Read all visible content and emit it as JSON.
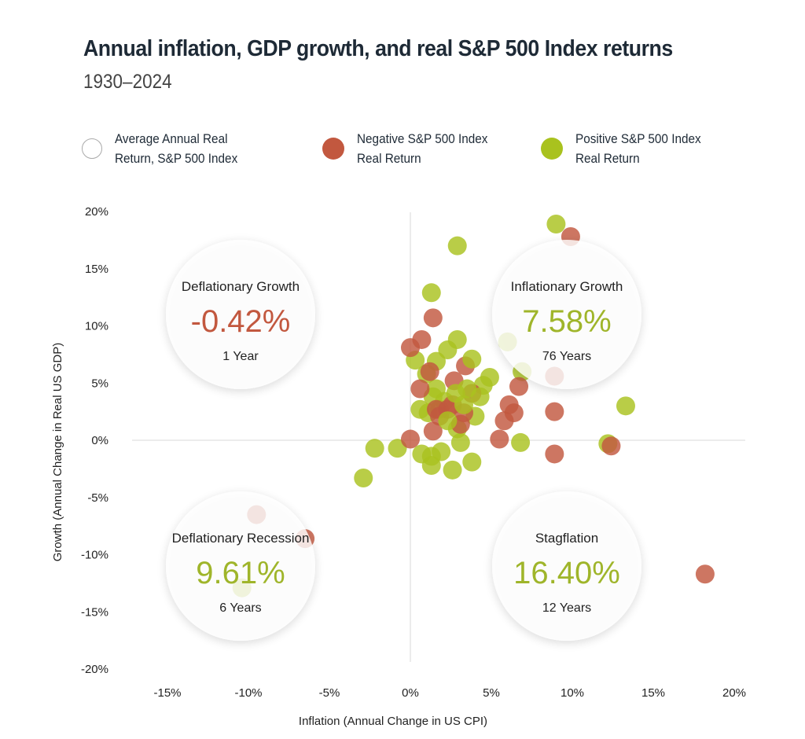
{
  "chart_data": {
    "type": "scatter",
    "title": "Annual inflation, GDP growth, and real S&P 500 Index returns",
    "subtitle": "1930–2024",
    "xlabel": "Inflation (Annual Change in US CPI)",
    "ylabel": "Growth (Annual Change in Real US GDP)",
    "xlim": [
      -17,
      21
    ],
    "ylim": [
      -20,
      20
    ],
    "x_ticks": [
      "-15%",
      "-10%",
      "-5%",
      "0%",
      "5%",
      "10%",
      "15%",
      "20%"
    ],
    "y_ticks": [
      "20%",
      "15%",
      "10%",
      "5%",
      "0%",
      "-5%",
      "-10%",
      "-15%",
      "-20%"
    ],
    "grid": false,
    "legend_placement": "top",
    "legend": [
      {
        "label": "Average Annual Real Return, S&P 500 Index",
        "color": "#ffffff"
      },
      {
        "label": "Negative S&P 500 Index Real Return",
        "color": "#c2583f"
      },
      {
        "label": "Positive S&P 500 Index Real Return",
        "color": "#a9c21e"
      }
    ],
    "colors": {
      "negative": "#c2583f",
      "positive": "#a9c21e",
      "deflationary_growth_value": "#c2583f",
      "other_values": "#9fb52a"
    },
    "quadrants": [
      {
        "name": "Deflationary Growth",
        "value": "-0.42%",
        "years": "1 Year",
        "x": -10,
        "y": 11,
        "tone": "negative"
      },
      {
        "name": "Inflationary Growth",
        "value": "7.58%",
        "years": "76 Years",
        "x": 10,
        "y": 11,
        "tone": "positive"
      },
      {
        "name": "Deflationary Recession",
        "value": "9.61%",
        "years": "6 Years",
        "x": -10,
        "y": -11,
        "tone": "positive"
      },
      {
        "name": "Stagflation",
        "value": "16.40%",
        "years": "12 Years",
        "x": 10,
        "y": -11,
        "tone": "positive"
      }
    ],
    "series": [
      {
        "name": "Positive S&P 500 Index Real Return",
        "points": [
          [
            2.9,
            17.0
          ],
          [
            9.0,
            18.9
          ],
          [
            1.3,
            12.9
          ],
          [
            13.3,
            3.0
          ],
          [
            12.2,
            -0.3
          ],
          [
            6.8,
            -0.2
          ],
          [
            -2.2,
            -0.7
          ],
          [
            -0.8,
            -0.7
          ],
          [
            -2.9,
            -3.3
          ],
          [
            1.3,
            -1.4
          ],
          [
            1.3,
            -2.2
          ],
          [
            2.6,
            -2.6
          ],
          [
            3.8,
            -1.9
          ],
          [
            3.1,
            -0.2
          ],
          [
            0.7,
            -1.2
          ],
          [
            1.9,
            -1.0
          ],
          [
            2.9,
            1.0
          ],
          [
            0.3,
            7.0
          ],
          [
            2.3,
            7.9
          ],
          [
            2.9,
            8.8
          ],
          [
            1.0,
            5.8
          ],
          [
            1.6,
            6.9
          ],
          [
            3.8,
            7.1
          ],
          [
            4.9,
            5.5
          ],
          [
            1.6,
            4.5
          ],
          [
            1.8,
            2.7
          ],
          [
            0.6,
            2.7
          ],
          [
            4.3,
            3.8
          ],
          [
            3.5,
            4.5
          ],
          [
            4.5,
            4.8
          ],
          [
            1.4,
            3.8
          ],
          [
            2.3,
            1.7
          ],
          [
            4.0,
            2.1
          ],
          [
            2.8,
            4.1
          ],
          [
            3.3,
            3.1
          ],
          [
            1.1,
            2.4
          ],
          [
            2.1,
            3.4
          ],
          [
            6.0,
            8.6
          ],
          [
            6.9,
            6.0
          ],
          [
            -10.4,
            -12.9
          ]
        ]
      },
      {
        "name": "Negative S&P 500 Index Real Return",
        "points": [
          [
            9.9,
            17.8
          ],
          [
            1.4,
            10.7
          ],
          [
            0.7,
            8.8
          ],
          [
            0.0,
            8.1
          ],
          [
            1.2,
            6.0
          ],
          [
            3.4,
            6.5
          ],
          [
            0.6,
            4.5
          ],
          [
            2.7,
            5.2
          ],
          [
            6.7,
            4.7
          ],
          [
            6.1,
            3.1
          ],
          [
            6.4,
            2.4
          ],
          [
            5.8,
            1.7
          ],
          [
            8.9,
            2.5
          ],
          [
            5.5,
            0.1
          ],
          [
            0.0,
            0.1
          ],
          [
            8.9,
            -1.2
          ],
          [
            12.4,
            -0.5
          ],
          [
            18.2,
            -11.7
          ],
          [
            1.4,
            0.8
          ],
          [
            1.8,
            2.1
          ],
          [
            3.1,
            1.4
          ],
          [
            2.6,
            3.1
          ],
          [
            3.3,
            2.4
          ],
          [
            1.6,
            2.7
          ],
          [
            2.3,
            2.7
          ],
          [
            3.8,
            4.1
          ],
          [
            8.9,
            5.6
          ],
          [
            -9.5,
            -6.5
          ],
          [
            -6.5,
            -8.6
          ]
        ]
      }
    ]
  }
}
